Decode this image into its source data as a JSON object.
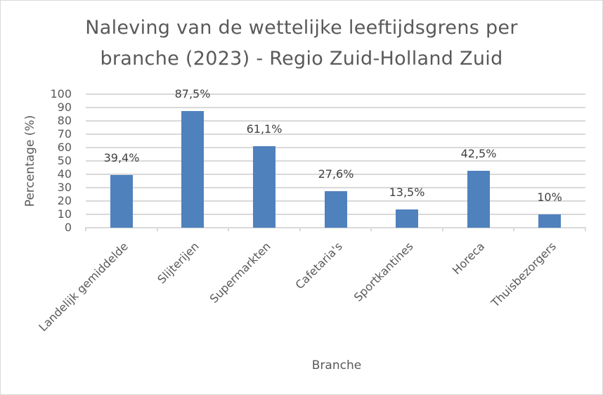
{
  "chart_data": {
    "type": "bar",
    "title": "Naleving van de wettelijke leeftijdsgrens per branche (2023) - Regio Zuid-Holland Zuid",
    "title_lines": [
      "Naleving van de wettelijke leeftijdsgrens per",
      "branche (2023) - Regio Zuid-Holland Zuid"
    ],
    "xlabel": "Branche",
    "ylabel": "Percentage (%)",
    "ylim": [
      0,
      100
    ],
    "yticks": [
      "100",
      "90",
      "80",
      "70",
      "60",
      "50",
      "40",
      "30",
      "20",
      "10",
      "0"
    ],
    "grid": true,
    "legend": "none",
    "categories": [
      "Landelijk gemiddelde",
      "Slijterijen",
      "Supermarkten",
      "Cafetaria's",
      "Sportkantines",
      "Horeca",
      "Thuisbezorgers"
    ],
    "values": [
      39.4,
      87.5,
      61.1,
      27.6,
      13.5,
      42.5,
      10
    ],
    "data_labels": [
      "39,4%",
      "87,5%",
      "61,1%",
      "27,6%",
      "13,5%",
      "42,5%",
      "10%"
    ],
    "colors": {
      "bar": "#4f81bd",
      "grid": "#d9d9d9",
      "text": "#595959"
    }
  }
}
